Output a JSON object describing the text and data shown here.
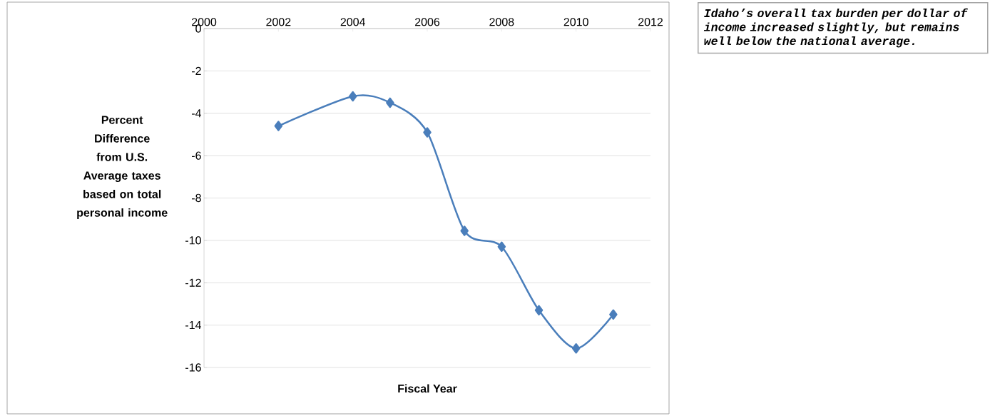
{
  "chart_data": {
    "type": "line",
    "xlabel": "Fiscal Year",
    "ylabel": "Percent Difference from U.S. Average taxes based on total personal income",
    "x": [
      2002,
      2004,
      2005,
      2006,
      2007,
      2008,
      2009,
      2010,
      2011
    ],
    "values": [
      -4.6,
      -3.2,
      -3.5,
      -4.9,
      -9.55,
      -10.3,
      -13.3,
      -15.1,
      -13.5
    ],
    "color": "#4a7ebb",
    "xlim": [
      2000,
      2012
    ],
    "xticks": [
      2000,
      2002,
      2004,
      2006,
      2008,
      2010,
      2012
    ],
    "ylim": [
      -16,
      0
    ],
    "yticks": [
      -16,
      -14,
      -12,
      -10,
      -8,
      -6,
      -4,
      -2,
      0
    ],
    "grid": "y",
    "marker": "diamond",
    "annotations": [
      "Idaho’s overall tax burden per dollar of income increased slightly, but remains well below the national average."
    ]
  }
}
